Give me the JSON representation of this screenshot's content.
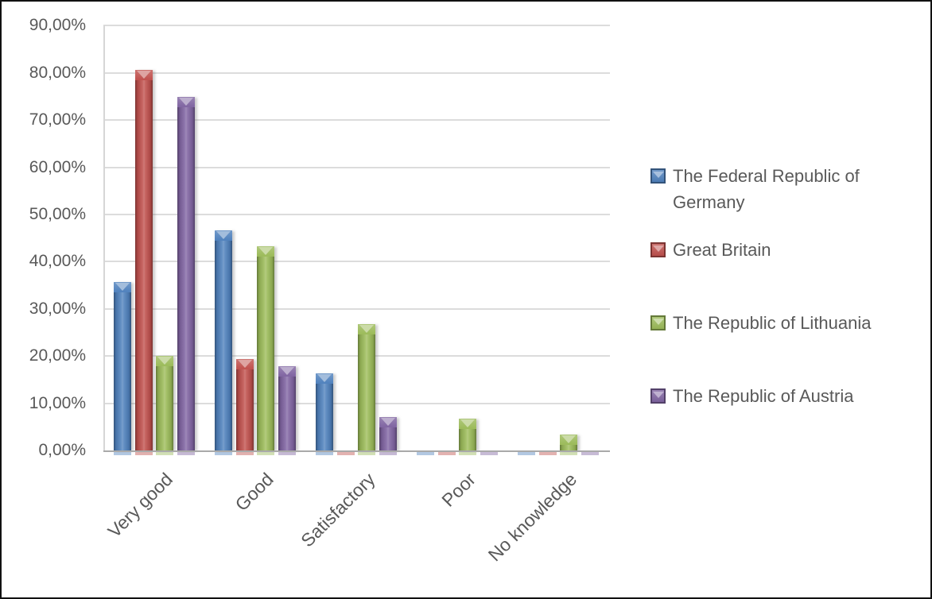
{
  "chart_data": {
    "type": "bar",
    "title": "",
    "xlabel": "",
    "ylabel": "",
    "categories": [
      "Very good",
      "Good",
      "Satisfactory",
      "Poor",
      "No knowledge"
    ],
    "series": [
      {
        "name": "The Federal Republic of Germany",
        "color": "#4F81BD",
        "values": [
          35.7,
          46.7,
          16.4,
          0,
          0
        ]
      },
      {
        "name": "Great Britain",
        "color": "#C0504D",
        "values": [
          80.6,
          19.4,
          0,
          0,
          0
        ]
      },
      {
        "name": "The Republic of Lithuania",
        "color": "#9BBB59",
        "values": [
          20.0,
          43.3,
          26.7,
          6.7,
          3.3
        ]
      },
      {
        "name": "The  Republic of Austria",
        "color": "#8064A2",
        "values": [
          75.0,
          17.9,
          7.1,
          0,
          0
        ]
      }
    ],
    "ylim": [
      0,
      90
    ],
    "ytick_step": 10,
    "ytick_labels": [
      "0,00%",
      "10,00%",
      "20,00%",
      "30,00%",
      "40,00%",
      "50,00%",
      "60,00%",
      "70,00%",
      "80,00%",
      "90,00%"
    ],
    "grid": true,
    "legend_position": "right",
    "bar_style": "3d-bevel"
  },
  "colors": {
    "text": "#595959",
    "gridline": "#dcdcdc",
    "axis_line": "#a9a9a9",
    "background": "#ffffff",
    "frame_border": "#111111"
  }
}
